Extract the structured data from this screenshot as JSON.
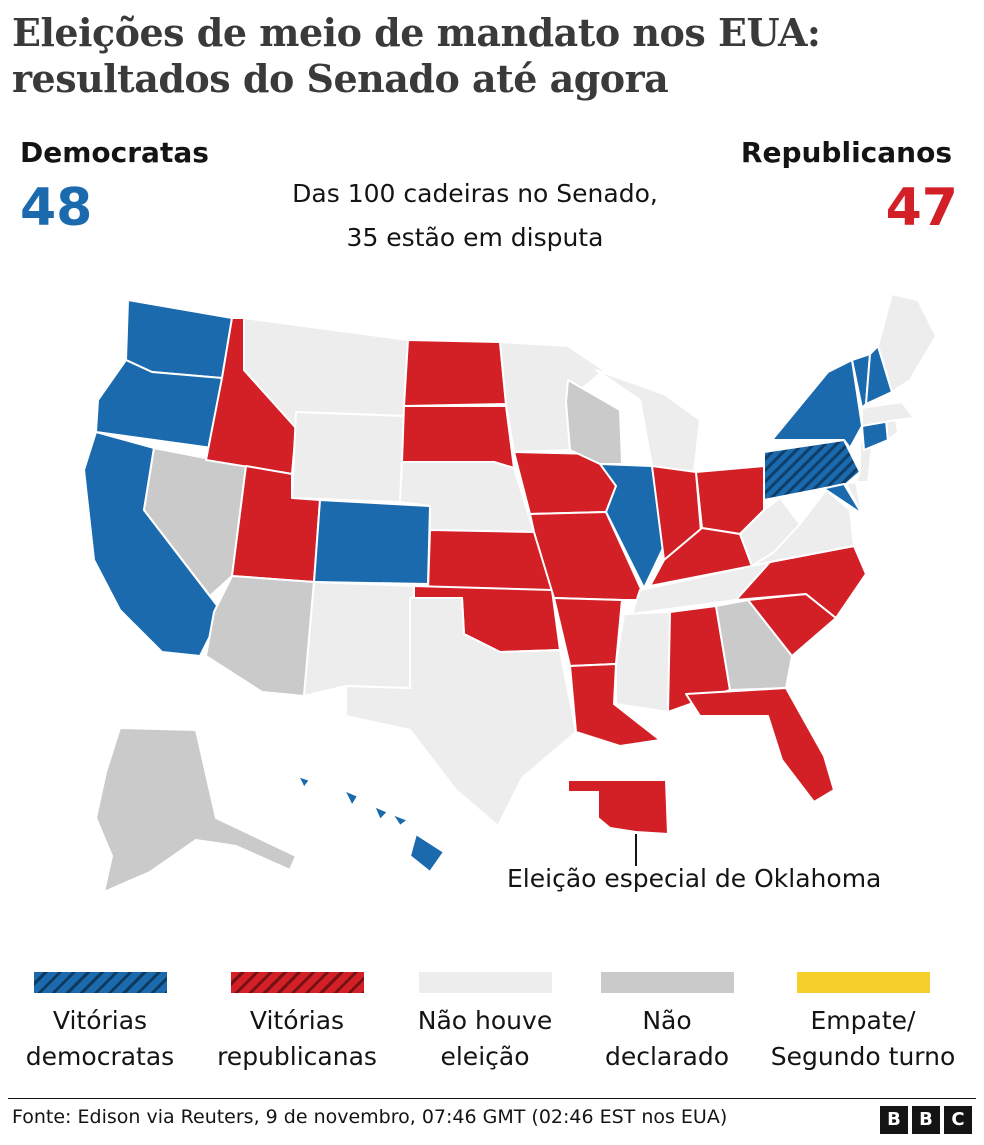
{
  "title": {
    "line1": "Eleições de meio de mandato nos EUA:",
    "line2": "resultados do Senado até agora"
  },
  "democrats": {
    "label": "Democratas",
    "seats": "48",
    "color": "#1a6aad"
  },
  "republicans": {
    "label": "Republicanos",
    "seats": "47",
    "color": "#d31f26"
  },
  "subtitle": {
    "line1": "Das 100 cadeiras no Senado,",
    "line2": "35 estão em disputa"
  },
  "map": {
    "states": {
      "WA": "dem",
      "OR": "dem",
      "CA": "dem",
      "NV": "undeclared",
      "ID": "rep",
      "MT": "none",
      "WY": "none",
      "UT": "rep",
      "AZ": "undeclared",
      "CO": "dem",
      "NM": "none",
      "ND": "rep",
      "SD": "rep",
      "NE": "none",
      "KS": "rep",
      "OK": "rep",
      "TX": "none",
      "MN": "none",
      "IA": "rep",
      "MO": "rep",
      "AR": "rep",
      "LA": "rep",
      "WI": "undeclared",
      "IL": "dem",
      "MI": "none",
      "IN": "rep",
      "OH": "rep",
      "KY": "rep",
      "TN": "none",
      "MS": "none",
      "AL": "rep",
      "GA": "undeclared",
      "FL": "rep",
      "SC": "rep",
      "NC": "rep",
      "VA": "none",
      "WV": "none",
      "PA": "dem_flip",
      "NY": "dem",
      "MD": "dem",
      "DE": "none",
      "NJ": "none",
      "CT": "dem",
      "RI": "none",
      "MA": "none",
      "VT": "dem",
      "NH": "dem",
      "ME": "none",
      "AK": "undeclared",
      "HI": "dem"
    },
    "special_election_label": "Eleição especial de Oklahoma"
  },
  "legend": [
    {
      "line1": "Vitórias",
      "line2": "democratas",
      "color": "#1a6aad",
      "pattern": "hatched"
    },
    {
      "line1": "Vitórias",
      "line2": "republicanas",
      "color": "#d31f26",
      "pattern": "hatched"
    },
    {
      "line1": "Não houve",
      "line2": "eleição",
      "color": "#ededed",
      "pattern": "solid"
    },
    {
      "line1": "Não",
      "line2": "declarado",
      "color": "#cacaca",
      "pattern": "solid"
    },
    {
      "line1": "Empate/",
      "line2": "Segundo turno",
      "color": "#f6cf2a",
      "pattern": "solid"
    }
  ],
  "colors": {
    "dem": "#1a6aad",
    "rep": "#d31f26",
    "none": "#ededed",
    "undeclared": "#cacaca",
    "tie": "#f6cf2a"
  },
  "footer": {
    "source": "Fonte: Edison via Reuters, 9 de novembro, 07:46 GMT (02:46 EST nos EUA)",
    "logo": [
      "B",
      "B",
      "C"
    ]
  }
}
